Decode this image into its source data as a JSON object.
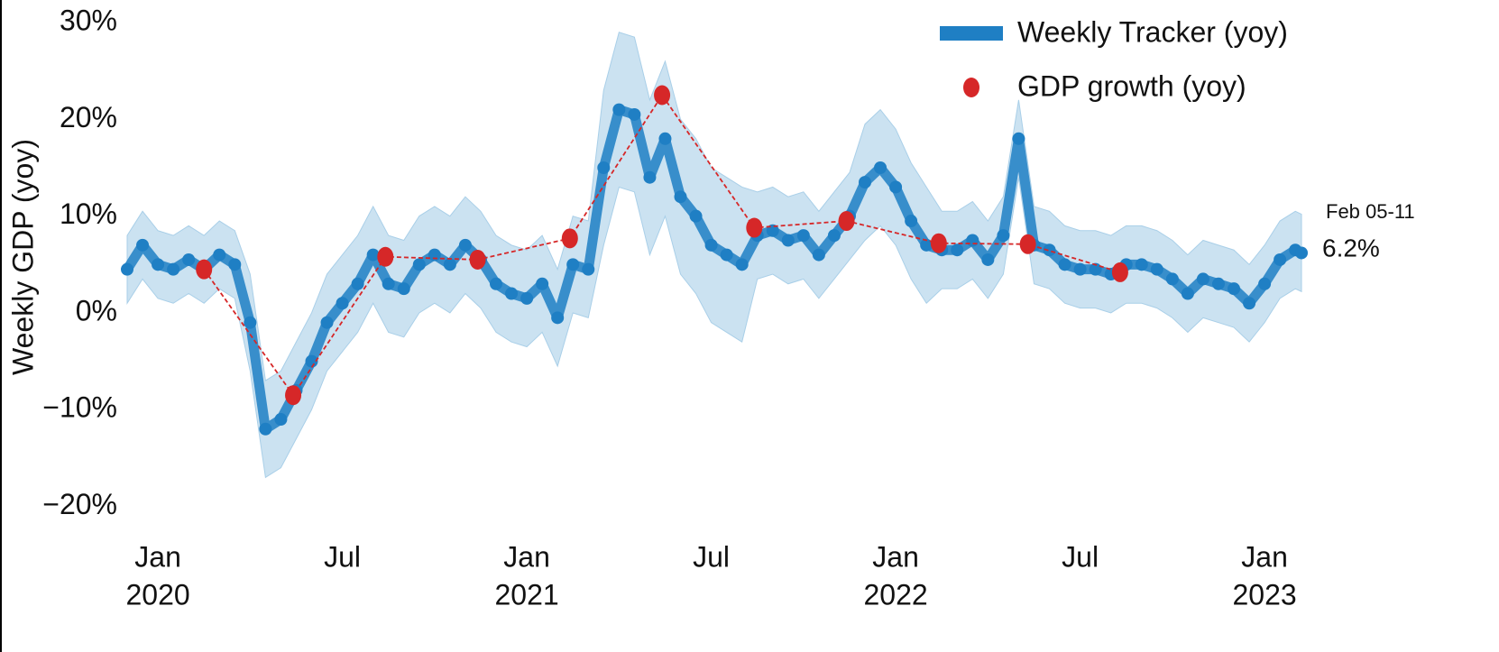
{
  "chart_data": {
    "type": "line",
    "y_label": "Weekly GDP (yoy)",
    "xlim": [
      -1,
      37.2
    ],
    "ylim": [
      -23,
      31
    ],
    "xticks": [
      {
        "value": 0,
        "label": "Jan",
        "sublabel": "2020"
      },
      {
        "value": 6,
        "label": "Jul"
      },
      {
        "value": 12,
        "label": "Jan",
        "sublabel": "2021"
      },
      {
        "value": 18,
        "label": "Jul"
      },
      {
        "value": 24,
        "label": "Jan",
        "sublabel": "2022"
      },
      {
        "value": 30,
        "label": "Jul"
      },
      {
        "value": 36,
        "label": "Jan",
        "sublabel": "2023"
      }
    ],
    "yticks": [
      {
        "value": -20,
        "label": "−20%"
      },
      {
        "value": -10,
        "label": "−10%"
      },
      {
        "value": 0,
        "label": "0%"
      },
      {
        "value": 10,
        "label": "10%"
      },
      {
        "value": 20,
        "label": "20%"
      },
      {
        "value": 30,
        "label": "30%"
      }
    ],
    "legend": "upper right",
    "annotation": "Feb 05-11",
    "series": [
      {
        "name": "Weekly Tracker (yoy)",
        "color": "#1f7fc4",
        "band_color": "#a9cfe8",
        "x": [
          -1,
          -0.5,
          0,
          0.5,
          1,
          1.5,
          2,
          2.5,
          3,
          3.5,
          4,
          4.5,
          5,
          5.5,
          6,
          6.5,
          7,
          7.5,
          8,
          8.5,
          9,
          9.5,
          10,
          10.5,
          11,
          11.5,
          12,
          12.5,
          13,
          13.5,
          14,
          14.5,
          15,
          15.5,
          16,
          16.5,
          17,
          17.5,
          18,
          18.5,
          19,
          19.5,
          20,
          20.5,
          21,
          21.5,
          22,
          22.5,
          23,
          23.5,
          24,
          24.5,
          25,
          25.5,
          26,
          26.5,
          27,
          27.5,
          28,
          28.5,
          29,
          29.5,
          30,
          30.5,
          31,
          31.5,
          32,
          32.5,
          33,
          33.5,
          34,
          34.5,
          35,
          35.5,
          36,
          36.5,
          37,
          37.2
        ],
        "values": [
          4.5,
          7,
          5,
          4.5,
          5.5,
          4.5,
          6,
          5,
          -1,
          -12,
          -11,
          -8,
          -5,
          -1,
          1,
          3,
          6,
          3,
          2.5,
          5,
          6,
          5,
          7,
          5.5,
          3,
          2,
          1.5,
          3,
          -0.5,
          5,
          4.5,
          15,
          21,
          20.5,
          14,
          18,
          12,
          10,
          7,
          6,
          5,
          8,
          8.5,
          7.5,
          8,
          6,
          8,
          10,
          13.5,
          15,
          13,
          9.5,
          7,
          6.5,
          6.5,
          7.5,
          5.5,
          8,
          18,
          7,
          6.5,
          5,
          4.5,
          4.5,
          4,
          5,
          5,
          4.5,
          3.5,
          2,
          3.5,
          3,
          2.5,
          1,
          3,
          5.5,
          6.5,
          6.2
        ],
        "upper": [
          8,
          10.5,
          8.5,
          8,
          9,
          8,
          9.5,
          8.5,
          4,
          -7,
          -6,
          -3,
          0,
          4,
          6,
          8,
          11,
          8,
          7.5,
          10,
          11,
          10,
          12,
          10.5,
          8,
          7,
          6.5,
          8,
          4.5,
          10,
          9.5,
          23,
          29,
          28.5,
          22,
          26,
          20,
          18,
          15,
          14,
          13,
          12.5,
          13,
          12,
          12.5,
          10.5,
          12.5,
          14.5,
          19.5,
          21,
          19,
          15.5,
          13,
          10.5,
          10.5,
          11.5,
          9.5,
          12,
          22,
          11,
          10.5,
          9,
          8.5,
          8.5,
          8,
          9,
          9,
          8.5,
          7.5,
          6,
          7.5,
          7,
          6.5,
          5,
          7,
          9.5,
          10.5,
          10.2
        ],
        "lower": [
          1,
          3.5,
          1.5,
          1,
          2,
          1,
          2.5,
          1.5,
          -6,
          -17,
          -16,
          -13,
          -10,
          -6,
          -4,
          -2,
          1,
          -2,
          -2.5,
          0,
          1,
          0,
          2,
          0.5,
          -2,
          -3,
          -3.5,
          -2,
          -5.5,
          0,
          -0.5,
          7,
          13,
          12.5,
          6,
          10,
          4,
          2,
          -1,
          -2,
          -3,
          3.5,
          4,
          3,
          3.5,
          1.5,
          3.5,
          5.5,
          7.5,
          9,
          7,
          3.5,
          1,
          2.5,
          2.5,
          3.5,
          1.5,
          4,
          14,
          3,
          2.5,
          1,
          0.5,
          0.5,
          0,
          1,
          1,
          0.5,
          -0.5,
          -2,
          -0.5,
          -1,
          -1.5,
          -3,
          -1,
          1.5,
          2.5,
          2.2
        ],
        "end_label": "6.2%"
      },
      {
        "name": "GDP growth (yoy)",
        "color": "#d62728",
        "x": [
          1.5,
          4.4,
          7.4,
          10.4,
          13.4,
          16.4,
          19.4,
          22.4,
          25.4,
          28.3,
          31.3
        ],
        "values": [
          4.5,
          -8.5,
          5.8,
          5.5,
          7.7,
          22.5,
          8.8,
          9.5,
          7.2,
          7.1,
          4.2
        ]
      }
    ]
  }
}
